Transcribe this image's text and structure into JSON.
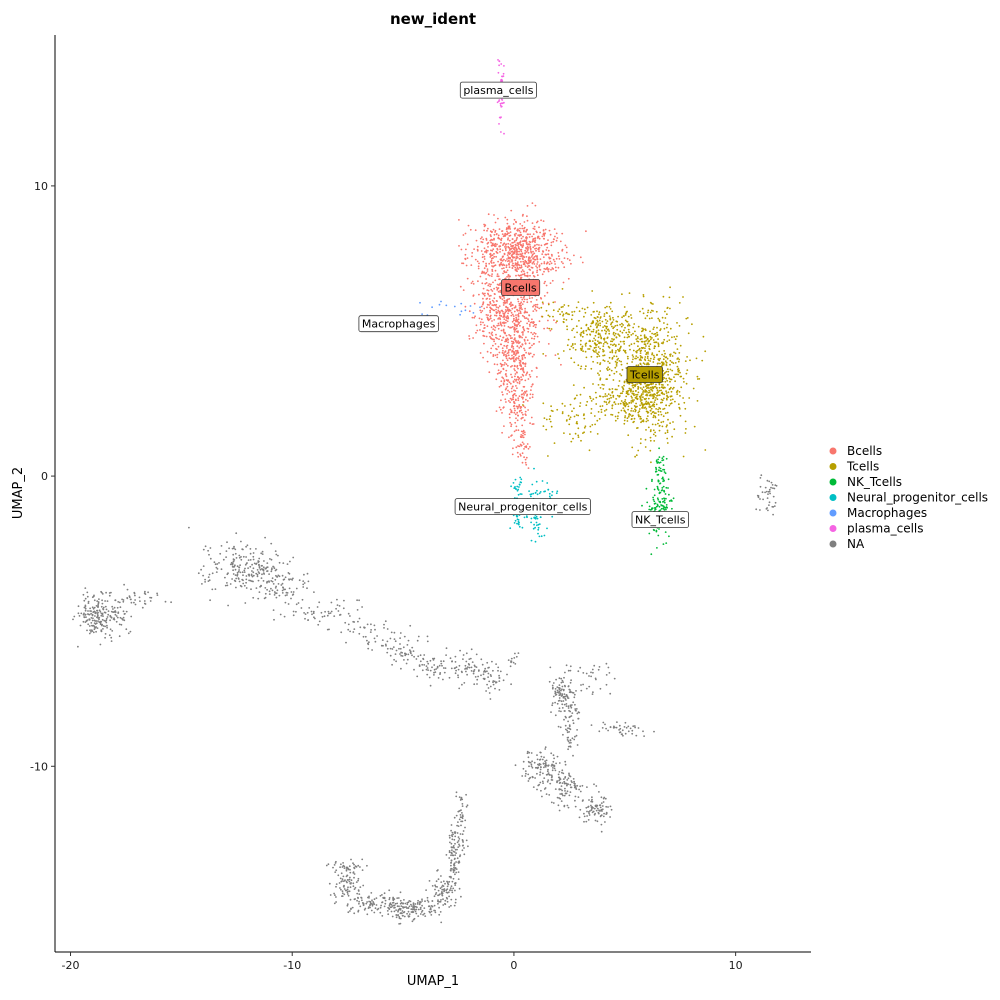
{
  "chart_data": {
    "type": "scatter",
    "title": "new_ident",
    "xlabel": "UMAP_1",
    "ylabel": "UMAP_2",
    "xlim": [
      -20.7,
      13.4
    ],
    "ylim": [
      -16.4,
      15.2
    ],
    "xticks": [
      -20,
      -10,
      0,
      10
    ],
    "yticks": [
      -10,
      0,
      10
    ],
    "grid": false,
    "legend_position": "right",
    "series": [
      {
        "name": "Bcells",
        "color": "#F8766D",
        "label_box": true,
        "label": "Bcells",
        "label_at": [
          0.3,
          6.5
        ],
        "clusters": [
          {
            "cx": 0.2,
            "cy": 7.7,
            "sx": 1.0,
            "sy": 0.55,
            "n": 700
          },
          {
            "cx": -0.3,
            "cy": 5.8,
            "sx": 0.9,
            "sy": 0.7,
            "n": 500
          },
          {
            "cx": 0.0,
            "cy": 4.2,
            "sx": 0.55,
            "sy": 0.6,
            "n": 260
          },
          {
            "cx": 0.1,
            "cy": 2.6,
            "sx": 0.35,
            "sy": 0.6,
            "n": 150
          },
          {
            "cx": 0.4,
            "cy": 1.0,
            "sx": 0.2,
            "sy": 0.4,
            "n": 40
          }
        ]
      },
      {
        "name": "Tcells",
        "color": "#B79F00",
        "label_box": true,
        "label": "Tcells",
        "label_at": [
          5.9,
          3.5
        ],
        "clusters": [
          {
            "cx": 6.2,
            "cy": 3.5,
            "sx": 0.8,
            "sy": 1.1,
            "n": 700
          },
          {
            "cx": 4.0,
            "cy": 4.8,
            "sx": 0.8,
            "sy": 0.55,
            "n": 300
          },
          {
            "cx": 5.0,
            "cy": 2.6,
            "sx": 0.9,
            "sy": 0.45,
            "n": 200
          },
          {
            "cx": 2.5,
            "cy": 2.0,
            "sx": 0.8,
            "sy": 0.5,
            "n": 60
          },
          {
            "cx": 2.5,
            "cy": 5.6,
            "sx": 0.6,
            "sy": 0.3,
            "n": 40
          }
        ]
      },
      {
        "name": "NK_Tcells",
        "color": "#00BA38",
        "label_box": false,
        "label": "NK_Tcells",
        "label_at": [
          6.6,
          -1.5
        ],
        "clusters": [
          {
            "cx": 6.6,
            "cy": -1.2,
            "sx": 0.25,
            "sy": 0.5,
            "n": 150
          },
          {
            "cx": 6.6,
            "cy": 0.2,
            "sx": 0.12,
            "sy": 0.3,
            "n": 40
          }
        ]
      },
      {
        "name": "Neural_progenitor_cells",
        "color": "#00BFC4",
        "label_box": false,
        "label": "Neural_progenitor_cells",
        "label_at": [
          0.4,
          -1.05
        ],
        "clusters": [
          {
            "cx": 0.2,
            "cy": -1.0,
            "sx": 0.15,
            "sy": 0.5,
            "n": 80
          },
          {
            "cx": 1.0,
            "cy": -1.2,
            "sx": 0.2,
            "sy": 0.45,
            "n": 80
          },
          {
            "cx": 1.6,
            "cy": -0.8,
            "sx": 0.2,
            "sy": 0.3,
            "n": 30
          }
        ]
      },
      {
        "name": "Macrophages",
        "color": "#619CFF",
        "label_box": false,
        "label": "Macrophages",
        "label_at": [
          -5.2,
          5.25
        ],
        "clusters": [
          {
            "cx": -5.1,
            "cy": 5.25,
            "sx": 0.3,
            "sy": 0.12,
            "n": 45
          },
          {
            "cx": -2.5,
            "cy": 5.8,
            "sx": 0.8,
            "sy": 0.2,
            "n": 15
          }
        ]
      },
      {
        "name": "plasma_cells",
        "color": "#F564E3",
        "label_box": false,
        "label": "plasma_cells",
        "label_at": [
          -0.7,
          13.3
        ],
        "clusters": [
          {
            "cx": -0.6,
            "cy": 13.3,
            "sx": 0.08,
            "sy": 0.5,
            "n": 60
          }
        ]
      },
      {
        "name": "NA",
        "color": "#7F7F7F",
        "label_box": false,
        "clusters": [
          {
            "cx": -18.6,
            "cy": -4.8,
            "sx": 0.55,
            "sy": 0.4,
            "n": 220
          },
          {
            "cx": -16.8,
            "cy": -4.2,
            "sx": 0.5,
            "sy": 0.15,
            "n": 30
          },
          {
            "cx": -12.0,
            "cy": -3.2,
            "sx": 0.9,
            "sy": 0.45,
            "n": 230
          },
          {
            "cx": -10.5,
            "cy": -3.9,
            "sx": 0.6,
            "sy": 0.25,
            "n": 60
          },
          {
            "cx": -8.5,
            "cy": -4.7,
            "sx": 1.0,
            "sy": 0.25,
            "n": 60
          },
          {
            "cx": -6.5,
            "cy": -5.4,
            "sx": 0.8,
            "sy": 0.25,
            "n": 40
          },
          {
            "cx": -5.0,
            "cy": -6.0,
            "sx": 0.5,
            "sy": 0.35,
            "n": 60
          },
          {
            "cx": -3.5,
            "cy": -6.5,
            "sx": 0.6,
            "sy": 0.3,
            "n": 50
          },
          {
            "cx": -2.0,
            "cy": -6.6,
            "sx": 0.6,
            "sy": 0.25,
            "n": 60
          },
          {
            "cx": -1.0,
            "cy": -7.0,
            "sx": 0.3,
            "sy": 0.3,
            "n": 40
          },
          {
            "cx": -0.1,
            "cy": -6.3,
            "sx": 0.15,
            "sy": 0.12,
            "n": 12
          },
          {
            "cx": 2.2,
            "cy": -7.5,
            "sx": 0.25,
            "sy": 0.4,
            "n": 100
          },
          {
            "cx": 3.6,
            "cy": -7.0,
            "sx": 0.4,
            "sy": 0.3,
            "n": 30
          },
          {
            "cx": 2.6,
            "cy": -8.7,
            "sx": 0.2,
            "sy": 0.6,
            "n": 60
          },
          {
            "cx": 1.2,
            "cy": -10.0,
            "sx": 0.4,
            "sy": 0.35,
            "n": 100
          },
          {
            "cx": 2.4,
            "cy": -10.7,
            "sx": 0.55,
            "sy": 0.35,
            "n": 110
          },
          {
            "cx": 3.6,
            "cy": -11.5,
            "sx": 0.4,
            "sy": 0.25,
            "n": 80
          },
          {
            "cx": 5.0,
            "cy": -8.7,
            "sx": 0.55,
            "sy": 0.1,
            "n": 40
          },
          {
            "cx": 11.4,
            "cy": -0.6,
            "sx": 0.3,
            "sy": 0.3,
            "n": 40
          },
          {
            "cx": -2.4,
            "cy": -12.0,
            "sx": 0.15,
            "sy": 0.6,
            "n": 60
          },
          {
            "cx": -2.7,
            "cy": -13.2,
            "sx": 0.15,
            "sy": 0.6,
            "n": 80
          },
          {
            "cx": -3.2,
            "cy": -14.3,
            "sx": 0.3,
            "sy": 0.3,
            "n": 80
          },
          {
            "cx": -4.8,
            "cy": -14.9,
            "sx": 0.7,
            "sy": 0.2,
            "n": 160
          },
          {
            "cx": -6.3,
            "cy": -14.7,
            "sx": 0.6,
            "sy": 0.18,
            "n": 70
          },
          {
            "cx": -7.5,
            "cy": -14.2,
            "sx": 0.4,
            "sy": 0.35,
            "n": 80
          },
          {
            "cx": -7.4,
            "cy": -13.5,
            "sx": 0.4,
            "sy": 0.15,
            "n": 40
          }
        ]
      }
    ]
  }
}
